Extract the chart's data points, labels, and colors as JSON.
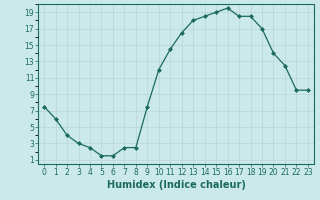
{
  "x_values": [
    0,
    1,
    2,
    3,
    4,
    5,
    6,
    7,
    8,
    9,
    10,
    11,
    12,
    13,
    14,
    15,
    16,
    17,
    18,
    19,
    20,
    21,
    22,
    23
  ],
  "y_values": [
    7.5,
    6.0,
    4.0,
    3.0,
    2.5,
    1.5,
    1.5,
    2.5,
    2.5,
    7.5,
    12.0,
    14.5,
    16.5,
    18.0,
    18.5,
    19.0,
    19.5,
    18.5,
    18.5,
    17.0,
    14.0,
    12.5,
    9.5,
    9.5
  ],
  "xlabel": "Humidex (Indice chaleur)",
  "xlim_min": -0.5,
  "xlim_max": 23.5,
  "ylim_min": 0.5,
  "ylim_max": 20.0,
  "x_ticks": [
    0,
    1,
    2,
    3,
    4,
    5,
    6,
    7,
    8,
    9,
    10,
    11,
    12,
    13,
    14,
    15,
    16,
    17,
    18,
    19,
    20,
    21,
    22,
    23
  ],
  "y_ticks": [
    1,
    3,
    5,
    7,
    9,
    11,
    13,
    15,
    17,
    19
  ],
  "line_color": "#1a6b5a",
  "marker": "D",
  "marker_size": 2,
  "bg_color": "#cce9e9",
  "grid_color": "#b8d4d4",
  "tick_fontsize": 5.5,
  "xlabel_fontsize": 7
}
